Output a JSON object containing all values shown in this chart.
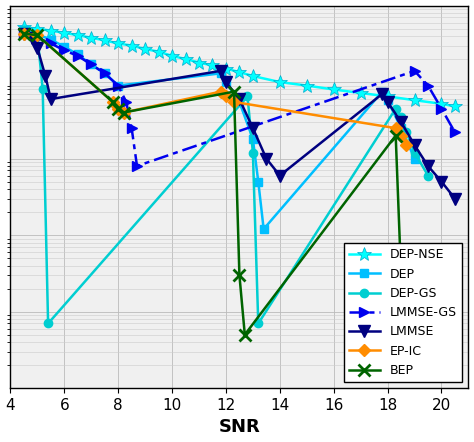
{
  "xlabel": "SNR",
  "xlim": [
    4,
    21
  ],
  "ylim": [
    1e-05,
    1.0
  ],
  "xticks": [
    4,
    6,
    8,
    10,
    12,
    14,
    16,
    18,
    20
  ],
  "bg_color": "#F0F0F0",
  "series": {
    "LMMSE": {
      "color": "#000080",
      "linestyle": "-",
      "marker": "v",
      "markersize": 8,
      "linewidth": 1.8,
      "x": [
        4.5,
        4.8,
        5.0,
        5.3,
        5.5,
        11.8,
        12.0,
        12.5,
        13.0,
        13.5,
        14.0,
        17.8,
        18.0,
        18.5,
        19.0,
        19.5,
        20.0,
        20.5
      ],
      "y": [
        0.42,
        0.38,
        0.28,
        0.12,
        0.06,
        0.14,
        0.1,
        0.06,
        0.025,
        0.01,
        0.006,
        0.07,
        0.055,
        0.03,
        0.015,
        0.008,
        0.005,
        0.003
      ]
    },
    "LMMSE-GS": {
      "color": "#0000EE",
      "linestyle": "-.",
      "marker": ">",
      "markersize": 7,
      "linewidth": 1.8,
      "x": [
        4.5,
        5.0,
        5.5,
        6.0,
        6.5,
        7.0,
        7.5,
        8.0,
        8.3,
        8.5,
        8.7,
        19.0,
        19.5,
        20.0,
        20.5
      ],
      "y": [
        0.43,
        0.38,
        0.32,
        0.26,
        0.22,
        0.17,
        0.13,
        0.09,
        0.055,
        0.025,
        0.008,
        0.14,
        0.09,
        0.045,
        0.022
      ]
    },
    "EP-IC": {
      "color": "#FF8C00",
      "linestyle": "-",
      "marker": "D",
      "markersize": 6,
      "linewidth": 1.8,
      "x": [
        4.5,
        5.0,
        7.8,
        8.0,
        8.2,
        11.8,
        12.0,
        12.3,
        18.3,
        18.5,
        18.7
      ],
      "y": [
        0.43,
        0.41,
        0.055,
        0.045,
        0.04,
        0.075,
        0.065,
        0.055,
        0.025,
        0.02,
        0.015
      ]
    },
    "BEP": {
      "color": "#006400",
      "linestyle": "-",
      "marker": "x",
      "markersize": 8,
      "linewidth": 1.8,
      "markeredgewidth": 2,
      "x": [
        4.5,
        5.0,
        7.8,
        8.0,
        8.2,
        12.3,
        12.5,
        12.7,
        18.3,
        18.5,
        18.7
      ],
      "y": [
        0.43,
        0.41,
        0.055,
        0.045,
        0.04,
        0.075,
        0.0003,
        5e-05,
        0.02,
        0.0003,
        5e-05
      ]
    },
    "DEP": {
      "color": "#00BFFF",
      "linestyle": "-",
      "marker": "s",
      "markersize": 6,
      "linewidth": 1.8,
      "x": [
        4.5,
        5.0,
        5.5,
        6.0,
        6.5,
        7.0,
        7.5,
        8.0,
        11.8,
        12.0,
        12.5,
        13.0,
        13.2,
        13.4,
        17.8,
        18.0,
        18.5,
        19.0
      ],
      "y": [
        0.48,
        0.42,
        0.36,
        0.29,
        0.23,
        0.17,
        0.13,
        0.09,
        0.13,
        0.1,
        0.055,
        0.018,
        0.005,
        0.0012,
        0.075,
        0.058,
        0.025,
        0.01
      ]
    },
    "DEP-GS": {
      "color": "#00CED1",
      "linestyle": "-",
      "marker": "o",
      "markersize": 6,
      "linewidth": 1.8,
      "x": [
        4.5,
        5.0,
        5.2,
        5.4,
        12.8,
        13.0,
        13.2,
        18.3,
        18.5,
        18.7,
        19.0,
        19.5
      ],
      "y": [
        0.48,
        0.42,
        0.08,
        7e-05,
        0.065,
        0.012,
        7e-05,
        0.045,
        0.035,
        0.022,
        0.012,
        0.006
      ]
    },
    "DEP-NSE": {
      "color": "#00FFFF",
      "linestyle": "-",
      "marker": "*",
      "markersize": 10,
      "linewidth": 1.8,
      "markeredgecolor": "#00AACC",
      "markeredgewidth": 0.5,
      "x": [
        4.5,
        5.0,
        5.5,
        6.0,
        6.5,
        7.0,
        7.5,
        8.0,
        8.5,
        9.0,
        9.5,
        10.0,
        10.5,
        11.0,
        11.5,
        12.0,
        12.5,
        13.0,
        14.0,
        15.0,
        16.0,
        17.0,
        18.0,
        19.0,
        20.0,
        20.5
      ],
      "y": [
        0.52,
        0.5,
        0.47,
        0.44,
        0.41,
        0.38,
        0.35,
        0.32,
        0.3,
        0.27,
        0.25,
        0.22,
        0.2,
        0.18,
        0.165,
        0.15,
        0.135,
        0.12,
        0.1,
        0.09,
        0.08,
        0.072,
        0.065,
        0.058,
        0.052,
        0.048
      ]
    }
  }
}
